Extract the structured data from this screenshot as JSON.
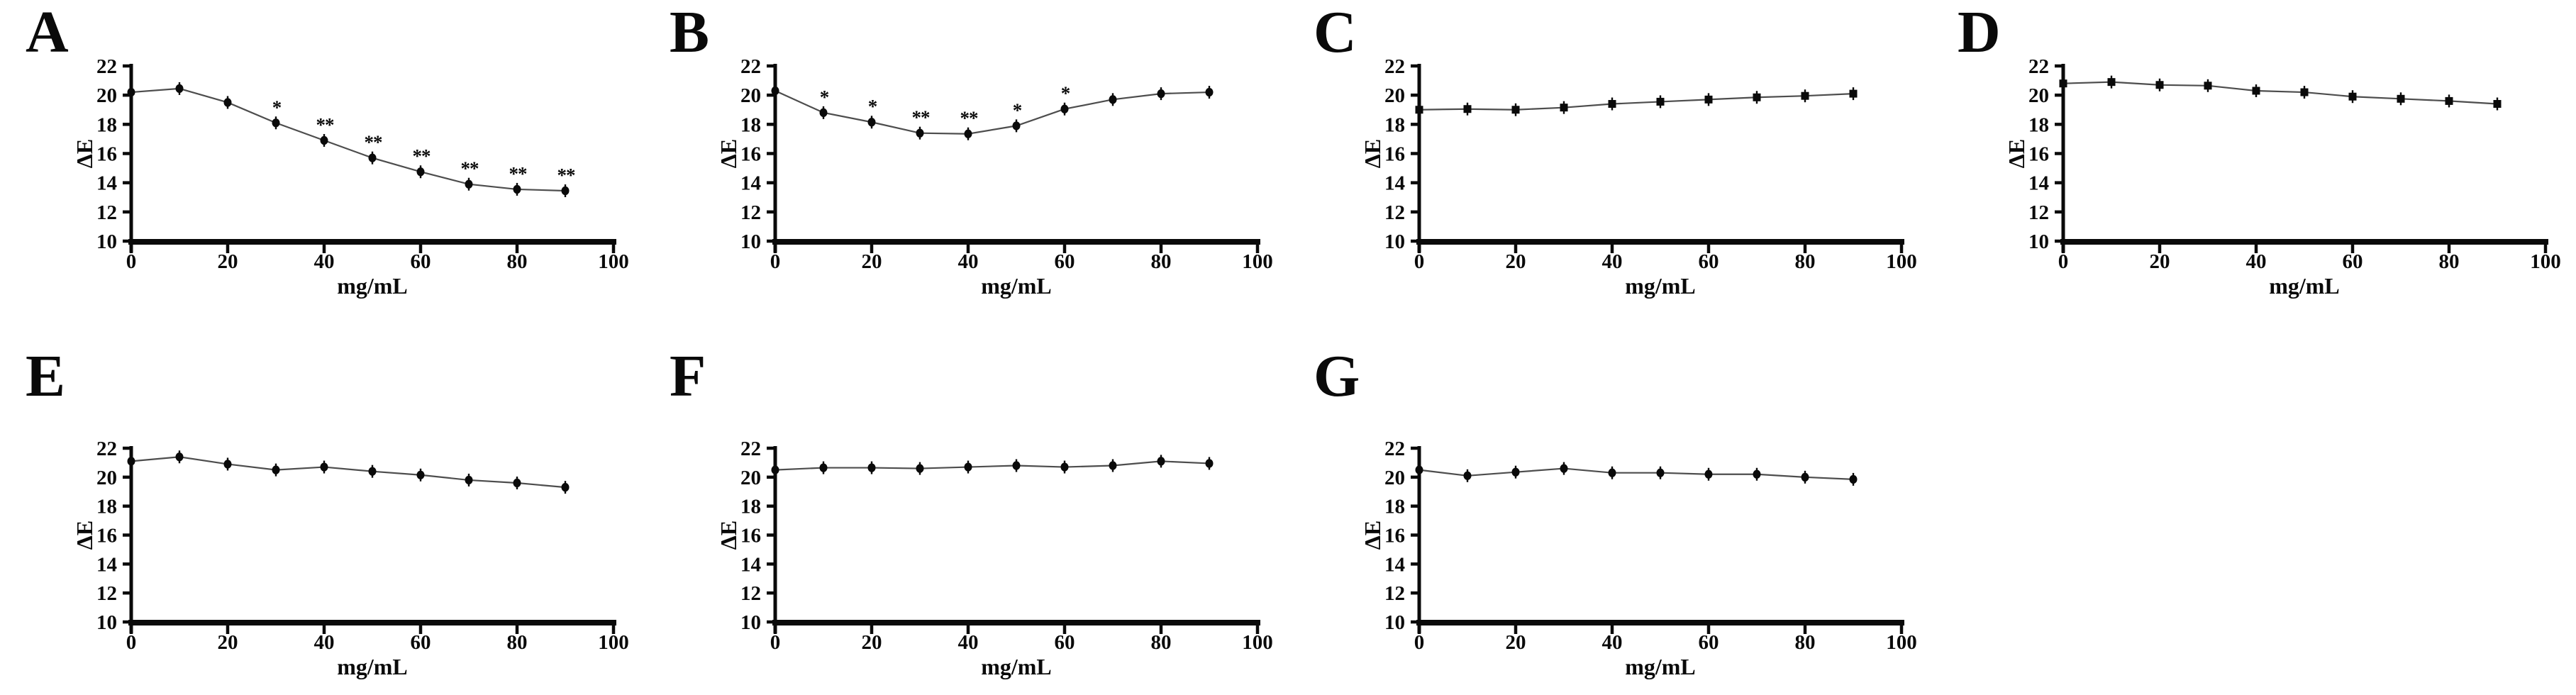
{
  "figure": {
    "background": "#ffffff",
    "x_tick_labels": [
      "0",
      "20",
      "40",
      "60",
      "80",
      "100"
    ],
    "y_tick_labels": [
      "10",
      "12",
      "14",
      "16",
      "18",
      "20",
      "22"
    ],
    "x_ticks": [
      0,
      20,
      40,
      60,
      80,
      100
    ],
    "y_ticks": [
      10,
      12,
      14,
      16,
      18,
      20,
      22
    ]
  },
  "colors": {
    "line": "#4d4d4d",
    "marker": "#0a0a0a",
    "axis": "#0a0a0a",
    "text": "#000000"
  },
  "chart_data": [
    {
      "id": "A",
      "title": "A",
      "type": "line",
      "marker": "circle",
      "xlabel": "mg/mL",
      "ylabel": "ΔE",
      "xlim": [
        0,
        100
      ],
      "ylim": [
        10,
        22
      ],
      "grid": false,
      "x": [
        0,
        10,
        20,
        30,
        40,
        50,
        60,
        70,
        80,
        90
      ],
      "values": [
        20.2,
        20.45,
        19.5,
        18.1,
        16.9,
        15.7,
        14.75,
        13.9,
        13.55,
        13.45
      ],
      "annotations": [
        "",
        "",
        "",
        "*",
        "**",
        "**",
        "**",
        "**",
        "**",
        "**"
      ]
    },
    {
      "id": "B",
      "title": "B",
      "type": "line",
      "marker": "circle",
      "xlabel": "mg/mL",
      "ylabel": "ΔE",
      "xlim": [
        0,
        100
      ],
      "ylim": [
        10,
        22
      ],
      "grid": false,
      "x": [
        0,
        10,
        20,
        30,
        40,
        50,
        60,
        70,
        80,
        90
      ],
      "values": [
        20.3,
        18.8,
        18.15,
        17.4,
        17.35,
        17.9,
        19.05,
        19.7,
        20.1,
        20.2
      ],
      "annotations": [
        "",
        "*",
        "*",
        "**",
        "**",
        "*",
        "*",
        "",
        "",
        ""
      ]
    },
    {
      "id": "C",
      "title": "C",
      "type": "line",
      "marker": "square",
      "xlabel": "mg/mL",
      "ylabel": "ΔE",
      "xlim": [
        0,
        100
      ],
      "ylim": [
        10,
        22
      ],
      "grid": false,
      "x": [
        0,
        10,
        20,
        30,
        40,
        50,
        60,
        70,
        80,
        90
      ],
      "values": [
        19.0,
        19.05,
        19.0,
        19.15,
        19.4,
        19.55,
        19.7,
        19.85,
        19.95,
        20.1
      ],
      "annotations": [
        "",
        "",
        "",
        "",
        "",
        "",
        "",
        "",
        "",
        ""
      ]
    },
    {
      "id": "D",
      "title": "D",
      "type": "line",
      "marker": "square",
      "xlabel": "mg/mL",
      "ylabel": "ΔE",
      "xlim": [
        0,
        100
      ],
      "ylim": [
        10,
        22
      ],
      "grid": false,
      "x": [
        0,
        10,
        20,
        30,
        40,
        50,
        60,
        70,
        80,
        90
      ],
      "values": [
        20.8,
        20.9,
        20.7,
        20.65,
        20.3,
        20.2,
        19.9,
        19.75,
        19.6,
        19.4
      ],
      "annotations": [
        "",
        "",
        "",
        "",
        "",
        "",
        "",
        "",
        "",
        ""
      ]
    },
    {
      "id": "E",
      "title": "E",
      "type": "line",
      "marker": "circle",
      "xlabel": "mg/mL",
      "ylabel": "ΔE",
      "xlim": [
        0,
        100
      ],
      "ylim": [
        10,
        22
      ],
      "grid": false,
      "x": [
        0,
        10,
        20,
        30,
        40,
        50,
        60,
        70,
        80,
        90
      ],
      "values": [
        21.1,
        21.4,
        20.9,
        20.5,
        20.7,
        20.4,
        20.15,
        19.8,
        19.6,
        19.3
      ],
      "annotations": [
        "",
        "",
        "",
        "",
        "",
        "",
        "",
        "",
        "",
        ""
      ]
    },
    {
      "id": "F",
      "title": "F",
      "type": "line",
      "marker": "circle",
      "xlabel": "mg/mL",
      "ylabel": "ΔE",
      "xlim": [
        0,
        100
      ],
      "ylim": [
        10,
        22
      ],
      "grid": false,
      "x": [
        0,
        10,
        20,
        30,
        40,
        50,
        60,
        70,
        80,
        90
      ],
      "values": [
        20.5,
        20.65,
        20.65,
        20.6,
        20.7,
        20.8,
        20.7,
        20.8,
        21.1,
        20.95
      ],
      "annotations": [
        "",
        "",
        "",
        "",
        "",
        "",
        "",
        "",
        "",
        ""
      ]
    },
    {
      "id": "G",
      "title": "G",
      "type": "line",
      "marker": "circle",
      "xlabel": "mg/mL",
      "ylabel": "ΔE",
      "xlim": [
        0,
        100
      ],
      "ylim": [
        10,
        22
      ],
      "grid": false,
      "x": [
        0,
        10,
        20,
        30,
        40,
        50,
        60,
        70,
        80,
        90
      ],
      "values": [
        20.5,
        20.1,
        20.35,
        20.6,
        20.3,
        20.3,
        20.2,
        20.2,
        20.0,
        19.85
      ],
      "annotations": [
        "",
        "",
        "",
        "",
        "",
        "",
        "",
        "",
        "",
        ""
      ]
    }
  ]
}
